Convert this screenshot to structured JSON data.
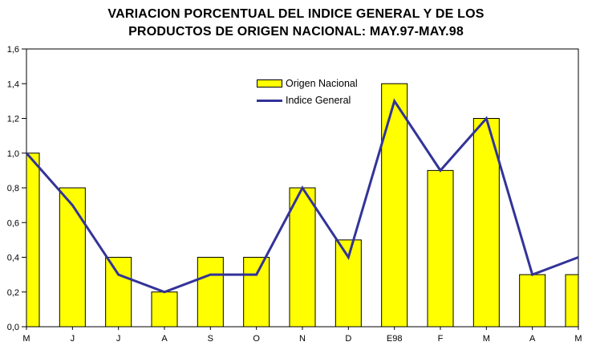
{
  "title": {
    "line1": "VARIACION PORCENTUAL DEL INDICE GENERAL Y DE LOS",
    "line2": "PRODUCTOS DE ORIGEN NACIONAL: MAY.97-MAY.98"
  },
  "legend": {
    "items": [
      {
        "label": "Origen Nacional",
        "type": "bar",
        "color": "#FFFF00"
      },
      {
        "label": "Indice General",
        "type": "line",
        "color": "#333399"
      }
    ]
  },
  "chart_data": {
    "type": "bar",
    "combo": "bar+line",
    "title": "VARIACION PORCENTUAL DEL INDICE GENERAL Y DE LOS PRODUCTOS DE ORIGEN NACIONAL: MAY.97-MAY.98",
    "categories": [
      "M",
      "J",
      "J",
      "A",
      "S",
      "O",
      "N",
      "D",
      "E98",
      "F",
      "M",
      "A",
      "M"
    ],
    "series": [
      {
        "name": "Origen Nacional",
        "type": "bar",
        "color": "#FFFF00",
        "border_color": "#000000",
        "values": [
          1.0,
          0.8,
          0.4,
          0.2,
          0.4,
          0.4,
          0.8,
          0.5,
          1.4,
          0.9,
          1.2,
          0.3,
          0.3
        ]
      },
      {
        "name": "Indice General",
        "type": "line",
        "color": "#333399",
        "values": [
          1.0,
          0.7,
          0.3,
          0.2,
          0.3,
          0.3,
          0.8,
          0.4,
          1.3,
          0.9,
          1.2,
          0.3,
          0.4
        ]
      }
    ],
    "xlabel": "",
    "ylabel": "",
    "ylim": [
      0,
      1.6
    ],
    "ytick_step": 0.2,
    "ytick_labels": [
      "0,0",
      "0,2",
      "0,4",
      "0,6",
      "0,8",
      "1,0",
      "1,2",
      "1,4",
      "1,6"
    ],
    "decimal_separator": ",",
    "grid": false,
    "legend_position": "inside-top-center",
    "plot_border": true,
    "background": "#FFFFFF"
  }
}
